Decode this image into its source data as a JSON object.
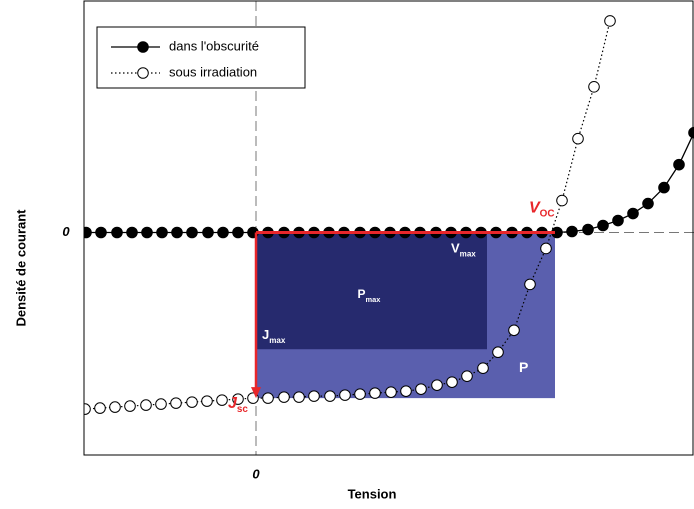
{
  "chart_data": {
    "type": "line",
    "x_label": "Tension",
    "y_label": "Densité de courant",
    "xlim": [
      -1.72,
      4.38
    ],
    "ylim": [
      -2.23,
      2.32
    ],
    "xticks": [
      0
    ],
    "yticks": [
      0
    ],
    "zero_lines": true,
    "legend": "upper left",
    "series": [
      {
        "name": "dans l'obscurité",
        "color": "#000000",
        "marker_fill": "#000000",
        "line_style": "solid",
        "x": [
          -1.7,
          -1.55,
          -1.39,
          -1.24,
          -1.09,
          -0.94,
          -0.79,
          -0.64,
          -0.48,
          -0.33,
          -0.18,
          -0.03,
          0.12,
          0.28,
          0.43,
          0.58,
          0.73,
          0.88,
          1.04,
          1.19,
          1.34,
          1.49,
          1.64,
          1.8,
          1.95,
          2.1,
          2.25,
          2.4,
          2.56,
          2.71,
          2.86,
          3.01,
          3.16,
          3.32,
          3.47,
          3.62,
          3.77,
          3.92,
          4.08,
          4.23,
          4.38
        ],
        "values": [
          0,
          0,
          0,
          0,
          0,
          0,
          0,
          0,
          0,
          0,
          0,
          0,
          0,
          0,
          0,
          0,
          0,
          0,
          0,
          0,
          0,
          0,
          0,
          0,
          0,
          0,
          0,
          0,
          0,
          0,
          0,
          0,
          0.01,
          0.03,
          0.07,
          0.12,
          0.19,
          0.29,
          0.45,
          0.68,
          1.0
        ]
      },
      {
        "name": "sous irradiation",
        "color": "#000000",
        "marker_fill": "#ffffff",
        "line_style": "dotted",
        "x": [
          -1.71,
          -1.56,
          -1.41,
          -1.26,
          -1.1,
          -0.95,
          -0.8,
          -0.64,
          -0.49,
          -0.34,
          -0.18,
          -0.03,
          0.12,
          0.28,
          0.43,
          0.58,
          0.74,
          0.89,
          1.04,
          1.19,
          1.35,
          1.5,
          1.65,
          1.81,
          1.96,
          2.11,
          2.27,
          2.42,
          2.58,
          2.74,
          2.9,
          3.06,
          3.22,
          3.38,
          3.54
        ],
        "values": [
          -1.77,
          -1.76,
          -1.75,
          -1.74,
          -1.73,
          -1.72,
          -1.71,
          -1.7,
          -1.69,
          -1.68,
          -1.67,
          -1.66,
          -1.66,
          -1.65,
          -1.65,
          -1.64,
          -1.64,
          -1.63,
          -1.62,
          -1.61,
          -1.6,
          -1.59,
          -1.57,
          -1.53,
          -1.5,
          -1.44,
          -1.36,
          -1.2,
          -0.98,
          -0.52,
          -0.16,
          0.32,
          0.94,
          1.46,
          2.12
        ]
      }
    ],
    "regions": {
      "p": {
        "label": "P",
        "color": "#5a5fae",
        "x": 2.99,
        "y": -1.66
      },
      "pmax": {
        "label": {
          "main": "P",
          "sub": "max"
        },
        "color": "#262a6e",
        "x": 2.31,
        "y": -1.17
      }
    },
    "markers": {
      "voc": {
        "label": {
          "main": "V",
          "sub": "OC"
        },
        "value": 2.99,
        "color": "#e8262a"
      },
      "jsc": {
        "label": {
          "main": "J",
          "sub": "sc"
        },
        "value": -1.66,
        "color": "#e8262a"
      },
      "vmax": {
        "label": {
          "main": "V",
          "sub": "max"
        },
        "value": 2.31
      },
      "jmax": {
        "label": {
          "main": "J",
          "sub": "max"
        },
        "value": -1.17
      }
    }
  }
}
